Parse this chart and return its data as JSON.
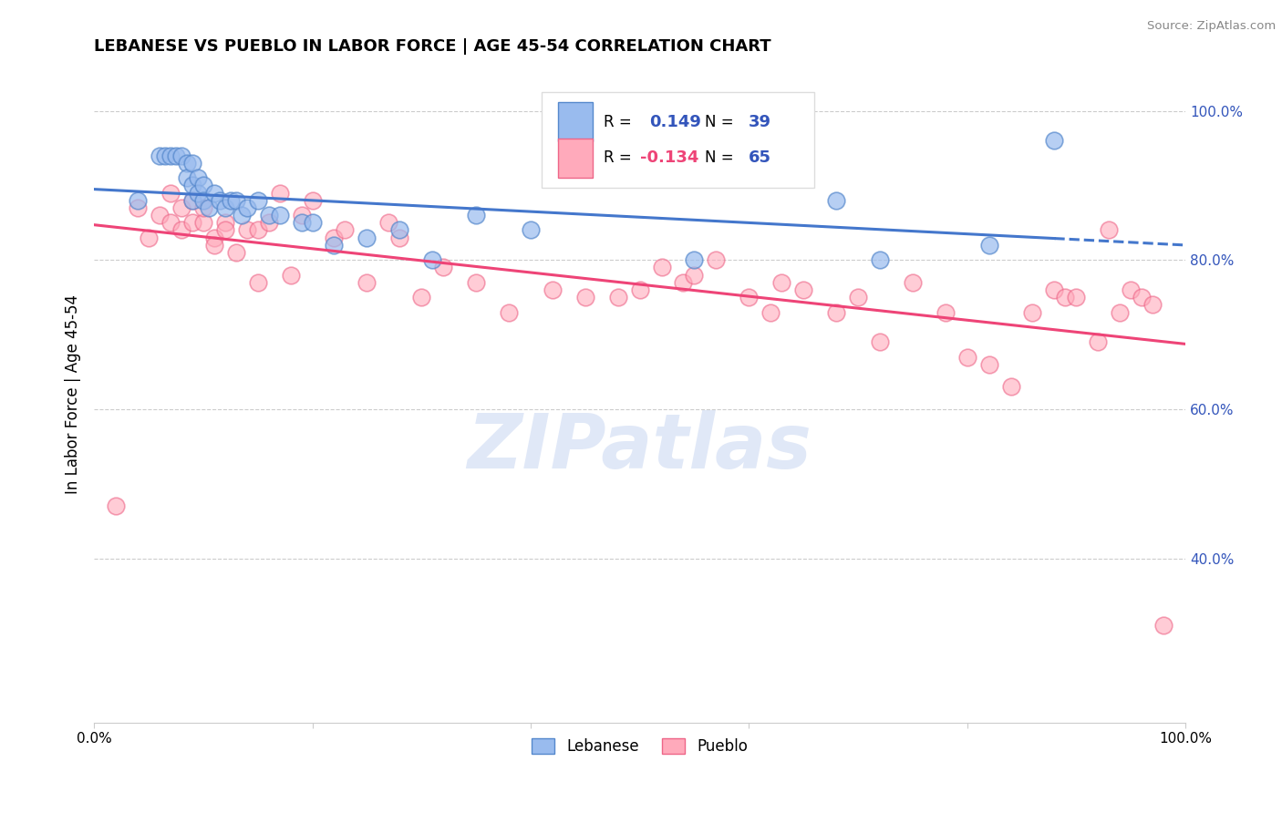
{
  "title": "LEBANESE VS PUEBLO IN LABOR FORCE | AGE 45-54 CORRELATION CHART",
  "source": "Source: ZipAtlas.com",
  "ylabel": "In Labor Force | Age 45-54",
  "r_lebanese": 0.149,
  "n_lebanese": 39,
  "r_pueblo": -0.134,
  "n_pueblo": 65,
  "blue_fill": "#99bbee",
  "blue_edge": "#5588cc",
  "pink_fill": "#ffaabb",
  "pink_edge": "#ee6688",
  "blue_line_color": "#4477cc",
  "pink_line_color": "#ee4477",
  "blue_text_color": "#3355bb",
  "pink_text_color": "#ee4477",
  "watermark_color": "#bbccee",
  "xlim": [
    0.0,
    1.0
  ],
  "ylim": [
    0.18,
    1.06
  ],
  "x_ticks": [
    0.0,
    0.2,
    0.4,
    0.6,
    0.8,
    1.0
  ],
  "y_ticks": [
    0.4,
    0.6,
    0.8,
    1.0
  ],
  "x_tick_labels": [
    "0.0%",
    "",
    "",
    "",
    "",
    "100.0%"
  ],
  "y_tick_labels": [
    "40.0%",
    "60.0%",
    "80.0%",
    "100.0%"
  ],
  "lebanese_x": [
    0.04,
    0.06,
    0.065,
    0.07,
    0.075,
    0.08,
    0.085,
    0.085,
    0.09,
    0.09,
    0.09,
    0.095,
    0.095,
    0.1,
    0.1,
    0.105,
    0.11,
    0.115,
    0.12,
    0.125,
    0.13,
    0.135,
    0.14,
    0.15,
    0.16,
    0.17,
    0.19,
    0.2,
    0.22,
    0.25,
    0.28,
    0.31,
    0.35,
    0.4,
    0.55,
    0.68,
    0.72,
    0.82,
    0.88
  ],
  "lebanese_y": [
    0.88,
    0.94,
    0.94,
    0.94,
    0.94,
    0.94,
    0.93,
    0.91,
    0.93,
    0.9,
    0.88,
    0.91,
    0.89,
    0.9,
    0.88,
    0.87,
    0.89,
    0.88,
    0.87,
    0.88,
    0.88,
    0.86,
    0.87,
    0.88,
    0.86,
    0.86,
    0.85,
    0.85,
    0.82,
    0.83,
    0.84,
    0.8,
    0.86,
    0.84,
    0.8,
    0.88,
    0.8,
    0.82,
    0.96
  ],
  "pueblo_x": [
    0.02,
    0.04,
    0.05,
    0.06,
    0.07,
    0.07,
    0.08,
    0.08,
    0.09,
    0.09,
    0.1,
    0.1,
    0.11,
    0.11,
    0.12,
    0.12,
    0.13,
    0.14,
    0.15,
    0.15,
    0.16,
    0.17,
    0.18,
    0.19,
    0.2,
    0.22,
    0.23,
    0.25,
    0.27,
    0.28,
    0.3,
    0.32,
    0.35,
    0.38,
    0.42,
    0.45,
    0.48,
    0.5,
    0.52,
    0.54,
    0.55,
    0.57,
    0.6,
    0.62,
    0.63,
    0.65,
    0.68,
    0.7,
    0.72,
    0.75,
    0.78,
    0.8,
    0.82,
    0.84,
    0.86,
    0.88,
    0.89,
    0.9,
    0.92,
    0.93,
    0.94,
    0.95,
    0.96,
    0.97,
    0.98
  ],
  "pueblo_y": [
    0.47,
    0.87,
    0.83,
    0.86,
    0.85,
    0.89,
    0.84,
    0.87,
    0.88,
    0.85,
    0.85,
    0.87,
    0.83,
    0.82,
    0.85,
    0.84,
    0.81,
    0.84,
    0.84,
    0.77,
    0.85,
    0.89,
    0.78,
    0.86,
    0.88,
    0.83,
    0.84,
    0.77,
    0.85,
    0.83,
    0.75,
    0.79,
    0.77,
    0.73,
    0.76,
    0.75,
    0.75,
    0.76,
    0.79,
    0.77,
    0.78,
    0.8,
    0.75,
    0.73,
    0.77,
    0.76,
    0.73,
    0.75,
    0.69,
    0.77,
    0.73,
    0.67,
    0.66,
    0.63,
    0.73,
    0.76,
    0.75,
    0.75,
    0.69,
    0.84,
    0.73,
    0.76,
    0.75,
    0.74,
    0.31
  ]
}
